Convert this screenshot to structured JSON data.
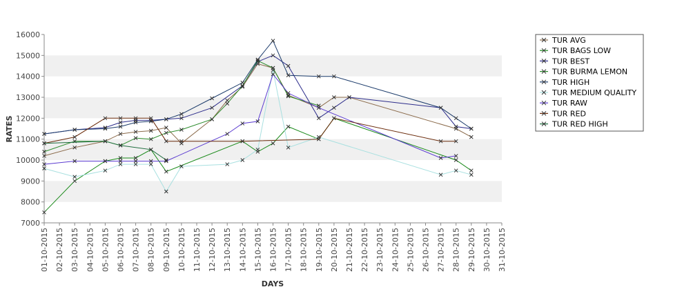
{
  "chart_data": {
    "type": "line",
    "xlabel": "DAYS",
    "ylabel": "RATES",
    "ylim": [
      7000,
      16000
    ],
    "y_ticks": [
      7000,
      8000,
      9000,
      10000,
      11000,
      12000,
      13000,
      14000,
      15000,
      16000
    ],
    "x_ticks": [
      "01-10-2015",
      "02-10-2015",
      "03-10-2015",
      "04-10-2015",
      "05-10-2015",
      "06-10-2015",
      "07-10-2015",
      "08-10-2015",
      "09-10-2015",
      "10-10-2015",
      "11-10-2015",
      "12-10-2015",
      "13-10-2015",
      "14-10-2015",
      "15-10-2015",
      "16-10-2015",
      "17-10-2015",
      "18-10-2015",
      "19-10-2015",
      "20-10-2015",
      "21-10-2015",
      "22-10-2015",
      "23-10-2015",
      "24-10-2015",
      "25-10-2015",
      "26-10-2015",
      "27-10-2015",
      "28-10-2015",
      "29-10-2015",
      "30-10-2015",
      "31-10-2015"
    ],
    "grid": "alternating horizontal bands",
    "legend_position": "right",
    "series": [
      {
        "name": "TUR AVG",
        "color": "#8a6a4a",
        "points": [
          [
            1,
            10200
          ],
          [
            3,
            10600
          ],
          [
            5,
            10900
          ],
          [
            6,
            11250
          ],
          [
            7,
            11350
          ],
          [
            8,
            11400
          ],
          [
            9,
            11550
          ],
          [
            10,
            10800
          ],
          [
            12,
            11950
          ],
          [
            13,
            12850
          ],
          [
            14,
            13500
          ],
          [
            15,
            14600
          ],
          [
            16,
            14400
          ],
          [
            17,
            13100
          ],
          [
            19,
            12500
          ],
          [
            20,
            13000
          ],
          [
            21,
            13000
          ],
          [
            28,
            11500
          ],
          [
            29,
            11100
          ]
        ]
      },
      {
        "name": "TUR BAGS LOW",
        "color": "#1a8a1a",
        "points": [
          [
            1,
            7500
          ],
          [
            3,
            9000
          ],
          [
            5,
            9950
          ],
          [
            6,
            10100
          ],
          [
            7,
            10100
          ],
          [
            8,
            10500
          ],
          [
            9,
            9450
          ],
          [
            14,
            10900
          ],
          [
            15,
            10400
          ],
          [
            16,
            10800
          ],
          [
            17,
            11600
          ],
          [
            19,
            11000
          ],
          [
            20,
            12000
          ],
          [
            28,
            10000
          ],
          [
            29,
            9500
          ]
        ]
      },
      {
        "name": "TUR BEST",
        "color": "#2a2a8a",
        "points": [
          [
            1,
            11250
          ],
          [
            3,
            11450
          ],
          [
            5,
            11550
          ],
          [
            6,
            11800
          ],
          [
            7,
            11900
          ],
          [
            8,
            11900
          ],
          [
            9,
            11950
          ],
          [
            10,
            12000
          ],
          [
            12,
            12500
          ],
          [
            14,
            13550
          ],
          [
            15,
            14700
          ],
          [
            16,
            15000
          ],
          [
            17,
            14500
          ],
          [
            19,
            12000
          ],
          [
            20,
            12500
          ],
          [
            21,
            13000
          ],
          [
            27,
            12500
          ],
          [
            28,
            11600
          ],
          [
            29,
            11500
          ]
        ]
      },
      {
        "name": "TUR BURMA LEMON",
        "color": "#2a8a2a",
        "points": [
          [
            1,
            10400
          ],
          [
            3,
            10900
          ],
          [
            5,
            10900
          ],
          [
            6,
            10700
          ],
          [
            7,
            11050
          ],
          [
            8,
            11000
          ],
          [
            9,
            11300
          ],
          [
            10,
            11450
          ],
          [
            12,
            11950
          ],
          [
            13,
            12700
          ],
          [
            14,
            13550
          ],
          [
            15,
            14750
          ],
          [
            16,
            14400
          ],
          [
            17,
            13050
          ],
          [
            19,
            12600
          ]
        ]
      },
      {
        "name": "TUR HIGH",
        "color": "#1a3a6a",
        "points": [
          [
            1,
            11250
          ],
          [
            3,
            11450
          ],
          [
            5,
            11500
          ],
          [
            6,
            11600
          ],
          [
            7,
            11800
          ],
          [
            8,
            11850
          ],
          [
            9,
            11950
          ],
          [
            10,
            12200
          ],
          [
            12,
            12950
          ],
          [
            14,
            13700
          ],
          [
            15,
            14800
          ],
          [
            16,
            15700
          ],
          [
            17,
            14050
          ],
          [
            19,
            14000
          ],
          [
            20,
            14000
          ],
          [
            27,
            12500
          ],
          [
            28,
            12000
          ],
          [
            29,
            11500
          ]
        ]
      },
      {
        "name": "TUR MEDIUM QUALITY",
        "color": "#a8e0e0",
        "points": [
          [
            1,
            9600
          ],
          [
            3,
            9200
          ],
          [
            5,
            9500
          ],
          [
            6,
            9800
          ],
          [
            7,
            9800
          ],
          [
            8,
            9800
          ],
          [
            9,
            8500
          ],
          [
            10,
            9700
          ],
          [
            13,
            9800
          ],
          [
            14,
            10000
          ],
          [
            15,
            10500
          ],
          [
            16,
            14300
          ],
          [
            17,
            10600
          ],
          [
            19,
            11100
          ],
          [
            27,
            9300
          ],
          [
            28,
            9500
          ],
          [
            29,
            9300
          ]
        ]
      },
      {
        "name": "TUR RAW",
        "color": "#5a3ad0",
        "points": [
          [
            1,
            9800
          ],
          [
            3,
            9950
          ],
          [
            5,
            9950
          ],
          [
            6,
            9950
          ],
          [
            7,
            9950
          ],
          [
            8,
            9950
          ],
          [
            9,
            9950
          ],
          [
            13,
            11250
          ],
          [
            14,
            11750
          ],
          [
            15,
            11850
          ],
          [
            16,
            14100
          ],
          [
            17,
            13200
          ],
          [
            19,
            12500
          ],
          [
            27,
            10100
          ],
          [
            28,
            10200
          ]
        ]
      },
      {
        "name": "TUR RED",
        "color": "#6a2a0a",
        "points": [
          [
            1,
            10800
          ],
          [
            3,
            11100
          ],
          [
            5,
            12000
          ],
          [
            6,
            12000
          ],
          [
            7,
            12000
          ],
          [
            8,
            12000
          ],
          [
            9,
            10900
          ],
          [
            10,
            10900
          ],
          [
            14,
            10900
          ],
          [
            19,
            11000
          ],
          [
            20,
            12000
          ],
          [
            27,
            10900
          ],
          [
            28,
            10900
          ]
        ]
      },
      {
        "name": "TUR RED HIGH",
        "color": "#1a6a3a",
        "points": [
          [
            1,
            10800
          ],
          [
            5,
            10900
          ],
          [
            6,
            10700
          ],
          [
            8,
            10500
          ],
          [
            9,
            10000
          ]
        ]
      }
    ]
  }
}
